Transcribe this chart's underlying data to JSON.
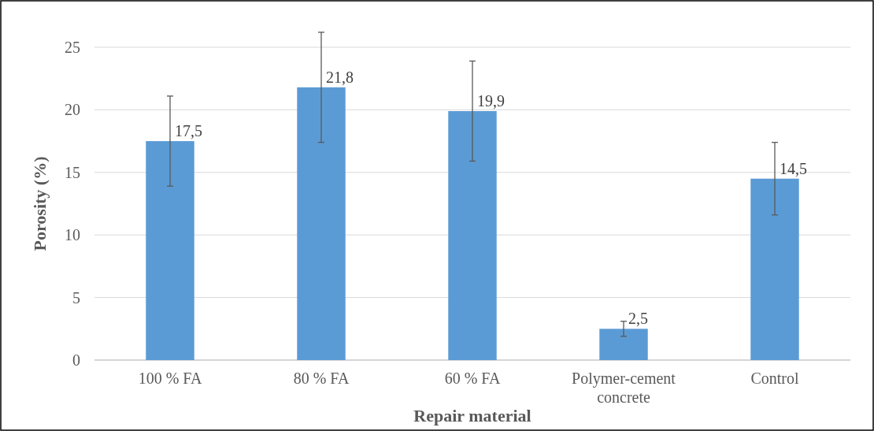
{
  "chart_data": {
    "type": "bar",
    "xlabel": "Repair material",
    "ylabel": "Porosity (%)",
    "categories": [
      "100 % FA",
      "80 % FA",
      "60 % FA",
      "Polymer-cement concrete",
      "Control"
    ],
    "values": [
      17.5,
      21.8,
      19.9,
      2.5,
      14.5
    ],
    "errors": [
      3.6,
      4.4,
      4.0,
      0.6,
      2.9
    ],
    "value_labels": [
      "17,5",
      "21,8",
      "19,9",
      "2,5",
      "14,5"
    ],
    "color": "#5b9bd5",
    "ylim": [
      0,
      25
    ],
    "yticks": [
      0,
      5,
      10,
      15,
      20,
      25
    ],
    "grid": "y"
  }
}
